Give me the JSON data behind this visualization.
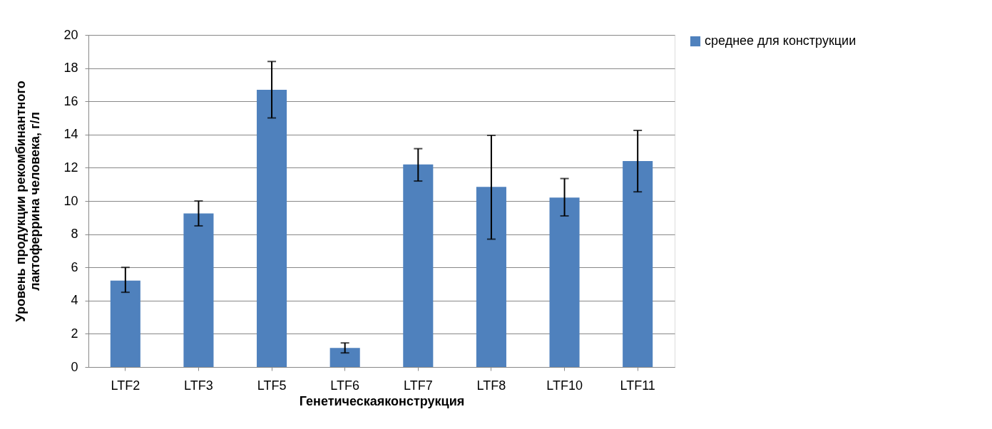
{
  "chart_data": {
    "type": "bar",
    "xlabel": "Генетическаяконструкция",
    "ylabel": "Уровень продукции рекомбинантного\nлактоферрина человека, г/л",
    "categories": [
      "LTF2",
      "LTF3",
      "LTF5",
      "LTF6",
      "LTF7",
      "LTF8",
      "LTF10",
      "LTF11"
    ],
    "series": [
      {
        "name": "среднее для конструкции",
        "color": "#4f81bd",
        "values": [
          5.2,
          9.25,
          16.7,
          1.15,
          12.2,
          10.85,
          10.2,
          12.4
        ],
        "errors": [
          [
            4.5,
            6.0
          ],
          [
            8.5,
            10.0
          ],
          [
            15.0,
            18.4
          ],
          [
            0.85,
            1.45
          ],
          [
            11.2,
            13.15
          ],
          [
            7.7,
            13.95
          ],
          [
            9.1,
            11.35
          ],
          [
            10.55,
            14.25
          ]
        ]
      }
    ],
    "ylim": [
      0,
      20
    ],
    "yticks": [
      0,
      2,
      4,
      6,
      8,
      10,
      12,
      14,
      16,
      18,
      20
    ],
    "grid": "y",
    "legend": "right"
  }
}
